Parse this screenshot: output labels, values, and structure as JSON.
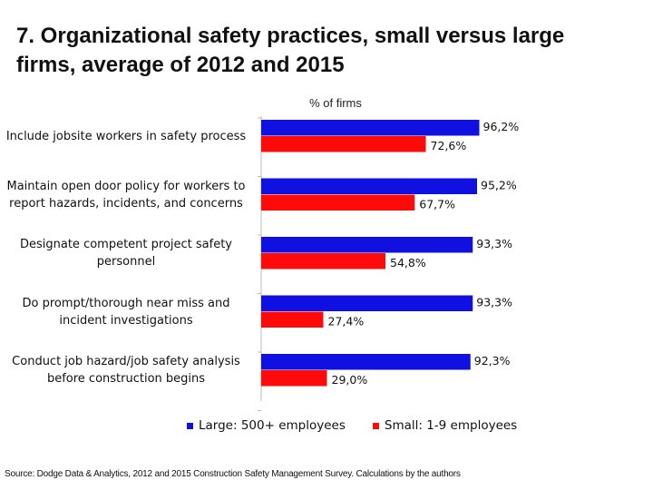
{
  "title": "7. Organizational safety practices, small versus large firms, average of 2012 and 2015",
  "subtitle": "% of firms",
  "source": "Source: Dodge Data & Analytics, 2012 and 2015 Construction Safety Management Survey. Calculations by the authors",
  "colors": {
    "large": "#1010e0",
    "small": "#ff0a0a"
  },
  "chart_data": {
    "type": "bar",
    "orientation": "horizontal",
    "categories": [
      "Include jobsite workers in safety process",
      "Maintain open door policy for workers to report hazards, incidents, and concerns",
      "Designate competent project safety personnel",
      "Do prompt/thorough near miss and incident investigations",
      "Conduct job hazard/job safety analysis before construction begins"
    ],
    "category_lines": [
      [
        "Include jobsite workers in safety process"
      ],
      [
        "Maintain open door policy for workers to",
        "report hazards, incidents, and concerns"
      ],
      [
        "Designate competent project safety",
        "personnel"
      ],
      [
        "Do prompt/thorough near miss and",
        "incident investigations"
      ],
      [
        "Conduct job hazard/job safety analysis",
        "before construction begins"
      ]
    ],
    "series": [
      {
        "name": "Large: 500+ employees",
        "values": [
          96.2,
          95.2,
          93.3,
          93.3,
          92.3
        ],
        "labels": [
          "96,2%",
          "95,2%",
          "93,3%",
          "93,3%",
          "92,3%"
        ]
      },
      {
        "name": "Small: 1-9 employees",
        "values": [
          72.6,
          67.7,
          54.8,
          27.4,
          29.0
        ],
        "labels": [
          "72,6%",
          "67,7%",
          "54,8%",
          "27,4%",
          "29,0%"
        ]
      }
    ],
    "xlim": [
      0,
      100
    ],
    "ylabel": "% of firms",
    "legend": "bottom"
  }
}
